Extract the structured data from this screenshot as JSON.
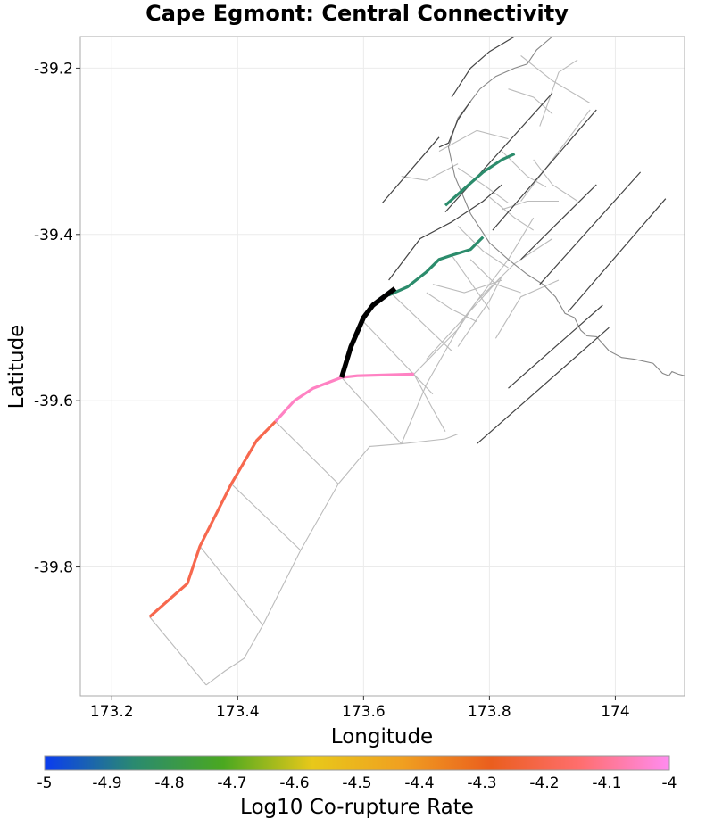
{
  "chart_data": {
    "type": "map",
    "title": "Cape Egmont: Central Connectivity",
    "xlabel": "Longitude",
    "ylabel": "Latitude",
    "xlim": [
      173.15,
      174.11
    ],
    "ylim": [
      -39.955,
      -39.162
    ],
    "xticks": [
      {
        "value": 173.2,
        "label": "173.2"
      },
      {
        "value": 173.4,
        "label": "173.4"
      },
      {
        "value": 173.6,
        "label": "173.6"
      },
      {
        "value": 173.8,
        "label": "173.8"
      },
      {
        "value": 174.0,
        "label": "174"
      }
    ],
    "yticks": [
      {
        "value": -39.2,
        "label": "-39.2"
      },
      {
        "value": -39.4,
        "label": "-39.4"
      },
      {
        "value": -39.6,
        "label": "-39.6"
      },
      {
        "value": -39.8,
        "label": "-39.8"
      }
    ],
    "colorbar": {
      "title": "Log10 Co-rupture Rate",
      "min": -5,
      "max": -4,
      "stops": [
        "#0a3cf0",
        "#2a8a70",
        "#4aa820",
        "#e8c81a",
        "#f0a020",
        "#ea5e1e",
        "#ff6e6e",
        "#ff8cf0"
      ],
      "ticks": [
        {
          "value": -5.0,
          "label": "-5"
        },
        {
          "value": -4.9,
          "label": "-4.9"
        },
        {
          "value": -4.8,
          "label": "-4.8"
        },
        {
          "value": -4.7,
          "label": "-4.7"
        },
        {
          "value": -4.6,
          "label": "-4.6"
        },
        {
          "value": -4.5,
          "label": "-4.5"
        },
        {
          "value": -4.4,
          "label": "-4.4"
        },
        {
          "value": -4.3,
          "label": "-4.3"
        },
        {
          "value": -4.2,
          "label": "-4.2"
        },
        {
          "value": -4.1,
          "label": "-4.1"
        },
        {
          "value": -4.0,
          "label": "-4"
        }
      ]
    },
    "colors": {
      "selected_fault": "#000000",
      "fault_trace": "#444444",
      "subsection_outline": "#bbbbbb",
      "gridline": "#ebebeb",
      "panel_border": "#aaaaaa",
      "coastline": "#888888"
    },
    "selected_fault": [
      [
        173.565,
        -39.572
      ],
      [
        173.58,
        -39.535
      ],
      [
        173.6,
        -39.5
      ],
      [
        173.615,
        -39.485
      ],
      [
        173.65,
        -39.465
      ]
    ],
    "colored_faults": [
      {
        "name": "southwest-segment",
        "log10_rate": -4.2,
        "points": [
          [
            173.26,
            -39.86
          ],
          [
            173.29,
            -39.84
          ],
          [
            173.32,
            -39.82
          ],
          [
            173.34,
            -39.775
          ],
          [
            173.39,
            -39.7
          ],
          [
            173.43,
            -39.648
          ],
          [
            173.46,
            -39.625
          ]
        ]
      },
      {
        "name": "offshore-segment",
        "log10_rate": -4.05,
        "points": [
          [
            173.46,
            -39.625
          ],
          [
            173.49,
            -39.6
          ],
          [
            173.52,
            -39.585
          ],
          [
            173.565,
            -39.572
          ],
          [
            173.59,
            -39.57
          ],
          [
            173.68,
            -39.568
          ]
        ]
      },
      {
        "name": "central-segment",
        "log10_rate": -4.85,
        "points": [
          [
            173.64,
            -39.473
          ],
          [
            173.67,
            -39.463
          ],
          [
            173.7,
            -39.445
          ],
          [
            173.72,
            -39.43
          ],
          [
            173.74,
            -39.425
          ],
          [
            173.77,
            -39.418
          ],
          [
            173.79,
            -39.403
          ]
        ]
      },
      {
        "name": "north-segment",
        "log10_rate": -4.85,
        "points": [
          [
            173.73,
            -39.365
          ],
          [
            173.76,
            -39.345
          ],
          [
            173.79,
            -39.325
          ],
          [
            173.82,
            -39.31
          ],
          [
            173.84,
            -39.303
          ]
        ]
      }
    ],
    "fault_traces": [
      [
        [
          173.63,
          -39.362
        ],
        [
          173.72,
          -39.283
        ]
      ],
      [
        [
          173.73,
          -39.373
        ],
        [
          173.9,
          -39.23
        ]
      ],
      [
        [
          173.805,
          -39.395
        ],
        [
          173.97,
          -39.25
        ]
      ],
      [
        [
          173.85,
          -39.43
        ],
        [
          173.97,
          -39.34
        ]
      ],
      [
        [
          173.88,
          -39.46
        ],
        [
          174.04,
          -39.325
        ]
      ],
      [
        [
          173.925,
          -39.493
        ],
        [
          174.08,
          -39.357
        ]
      ],
      [
        [
          173.83,
          -39.585
        ],
        [
          173.98,
          -39.485
        ]
      ],
      [
        [
          173.78,
          -39.652
        ],
        [
          173.99,
          -39.512
        ]
      ],
      [
        [
          173.64,
          -39.455
        ],
        [
          173.69,
          -39.405
        ],
        [
          173.74,
          -39.385
        ],
        [
          173.79,
          -39.36
        ],
        [
          173.82,
          -39.34
        ]
      ],
      [
        [
          173.74,
          -39.235
        ],
        [
          173.77,
          -39.2
        ],
        [
          173.8,
          -39.18
        ],
        [
          173.84,
          -39.162
        ]
      ],
      [
        [
          173.72,
          -39.295
        ],
        [
          173.735,
          -39.29
        ],
        [
          173.75,
          -39.262
        ],
        [
          173.77,
          -39.24
        ]
      ]
    ],
    "coastline": [
      [
        173.9,
        -39.162
      ],
      [
        173.875,
        -39.178
      ],
      [
        173.86,
        -39.195
      ],
      [
        173.84,
        -39.2
      ],
      [
        173.81,
        -39.21
      ],
      [
        173.785,
        -39.225
      ],
      [
        173.77,
        -39.24
      ],
      [
        173.75,
        -39.26
      ],
      [
        173.735,
        -39.295
      ],
      [
        173.745,
        -39.33
      ],
      [
        173.77,
        -39.375
      ],
      [
        173.8,
        -39.41
      ],
      [
        173.83,
        -39.43
      ],
      [
        173.86,
        -39.448
      ],
      [
        173.885,
        -39.46
      ],
      [
        173.905,
        -39.475
      ],
      [
        173.92,
        -39.495
      ],
      [
        173.935,
        -39.5
      ],
      [
        173.945,
        -39.515
      ],
      [
        173.955,
        -39.522
      ],
      [
        173.97,
        -39.523
      ],
      [
        173.99,
        -39.54
      ],
      [
        174.01,
        -39.548
      ],
      [
        174.03,
        -39.55
      ],
      [
        174.06,
        -39.555
      ],
      [
        174.075,
        -39.567
      ],
      [
        174.085,
        -39.57
      ],
      [
        174.09,
        -39.565
      ],
      [
        174.1,
        -39.568
      ],
      [
        174.11,
        -39.57
      ]
    ],
    "subsection_outlines": [
      [
        [
          173.26,
          -39.86
        ],
        [
          173.35,
          -39.942
        ]
      ],
      [
        [
          173.34,
          -39.775
        ],
        [
          173.44,
          -39.87
        ]
      ],
      [
        [
          173.39,
          -39.7
        ],
        [
          173.5,
          -39.78
        ]
      ],
      [
        [
          173.46,
          -39.625
        ],
        [
          173.56,
          -39.7
        ]
      ],
      [
        [
          173.565,
          -39.572
        ],
        [
          173.66,
          -39.652
        ]
      ],
      [
        [
          173.6,
          -39.505
        ],
        [
          173.71,
          -39.592
        ]
      ],
      [
        [
          173.64,
          -39.468
        ],
        [
          173.74,
          -39.54
        ]
      ],
      [
        [
          173.74,
          -39.425
        ],
        [
          173.8,
          -39.49
        ]
      ],
      [
        [
          173.35,
          -39.942
        ],
        [
          173.38,
          -39.925
        ],
        [
          173.41,
          -39.91
        ],
        [
          173.44,
          -39.87
        ],
        [
          173.5,
          -39.78
        ],
        [
          173.56,
          -39.7
        ],
        [
          173.61,
          -39.655
        ],
        [
          173.66,
          -39.652
        ],
        [
          173.73,
          -39.646
        ],
        [
          173.75,
          -39.64
        ]
      ],
      [
        [
          173.68,
          -39.568
        ],
        [
          173.71,
          -39.61
        ],
        [
          173.73,
          -39.637
        ]
      ],
      [
        [
          173.68,
          -39.568
        ],
        [
          173.75,
          -39.514
        ],
        [
          173.78,
          -39.48
        ],
        [
          173.84,
          -39.435
        ],
        [
          173.9,
          -39.405
        ]
      ],
      [
        [
          173.66,
          -39.652
        ],
        [
          173.7,
          -39.58
        ],
        [
          173.76,
          -39.5
        ],
        [
          173.83,
          -39.43
        ],
        [
          173.87,
          -39.38
        ]
      ],
      [
        [
          173.7,
          -39.55
        ],
        [
          173.76,
          -39.5
        ],
        [
          173.82,
          -39.45
        ]
      ],
      [
        [
          173.72,
          -39.3
        ],
        [
          173.78,
          -39.275
        ],
        [
          173.83,
          -39.285
        ]
      ],
      [
        [
          173.82,
          -39.3
        ],
        [
          173.86,
          -39.33
        ],
        [
          173.89,
          -39.343
        ]
      ],
      [
        [
          173.83,
          -39.225
        ],
        [
          173.87,
          -39.235
        ],
        [
          173.9,
          -39.255
        ]
      ],
      [
        [
          173.87,
          -39.31
        ],
        [
          173.9,
          -39.34
        ],
        [
          173.94,
          -39.36
        ]
      ],
      [
        [
          173.8,
          -39.355
        ],
        [
          173.84,
          -39.38
        ],
        [
          173.87,
          -39.395
        ]
      ],
      [
        [
          173.75,
          -39.39
        ],
        [
          173.79,
          -39.42
        ],
        [
          173.83,
          -39.44
        ]
      ],
      [
        [
          173.77,
          -39.43
        ],
        [
          173.81,
          -39.46
        ],
        [
          173.85,
          -39.47
        ]
      ],
      [
        [
          173.7,
          -39.47
        ],
        [
          173.74,
          -39.49
        ],
        [
          173.78,
          -39.505
        ]
      ],
      [
        [
          173.75,
          -39.535
        ],
        [
          173.8,
          -39.48
        ],
        [
          173.82,
          -39.45
        ]
      ],
      [
        [
          173.81,
          -39.525
        ],
        [
          173.85,
          -39.475
        ],
        [
          173.91,
          -39.455
        ]
      ],
      [
        [
          173.85,
          -39.36
        ],
        [
          173.89,
          -39.32
        ],
        [
          173.93,
          -39.28
        ],
        [
          173.96,
          -39.25
        ]
      ],
      [
        [
          173.85,
          -39.185
        ],
        [
          173.9,
          -39.215
        ],
        [
          173.96,
          -39.242
        ]
      ],
      [
        [
          173.88,
          -39.27
        ],
        [
          173.91,
          -39.205
        ],
        [
          173.94,
          -39.19
        ]
      ],
      [
        [
          173.75,
          -39.32
        ],
        [
          173.79,
          -39.34
        ],
        [
          173.83,
          -39.362
        ]
      ],
      [
        [
          173.66,
          -39.33
        ],
        [
          173.7,
          -39.335
        ],
        [
          173.75,
          -39.315
        ]
      ],
      [
        [
          173.82,
          -39.37
        ],
        [
          173.86,
          -39.36
        ],
        [
          173.91,
          -39.36
        ]
      ],
      [
        [
          173.71,
          -39.46
        ],
        [
          173.76,
          -39.47
        ],
        [
          173.82,
          -39.455
        ]
      ]
    ]
  }
}
